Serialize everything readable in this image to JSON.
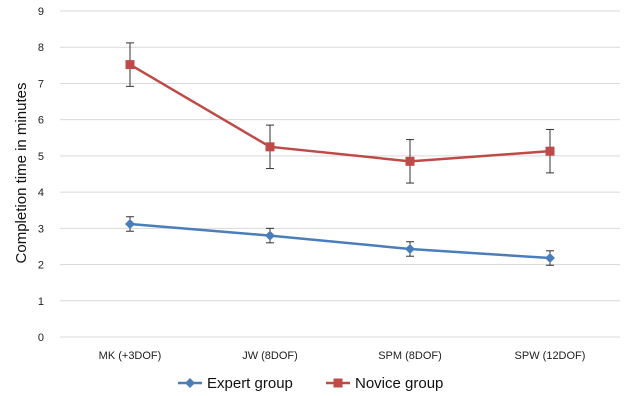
{
  "chart_data": {
    "type": "line",
    "title": "",
    "xlabel": "",
    "ylabel": "Completion time in minutes",
    "ylim": [
      0,
      9
    ],
    "yticks": [
      0,
      1,
      2,
      3,
      4,
      5,
      6,
      7,
      8,
      9
    ],
    "grid": "horizontal",
    "legend_position": "bottom",
    "categories": [
      "MK (+3DOF)",
      "JW (8DOF)",
      "SPM (8DOF)",
      "SPW (12DOF)"
    ],
    "series": [
      {
        "name": "Expert group",
        "color": "#4a7ebb",
        "marker": "diamond",
        "values": [
          3.12,
          2.8,
          2.43,
          2.18
        ],
        "error": [
          0.2,
          0.2,
          0.2,
          0.2
        ]
      },
      {
        "name": "Novice group",
        "color": "#be4b48",
        "marker": "square",
        "values": [
          7.52,
          5.25,
          4.85,
          5.13
        ],
        "error": [
          0.6,
          0.6,
          0.6,
          0.6
        ]
      }
    ]
  }
}
